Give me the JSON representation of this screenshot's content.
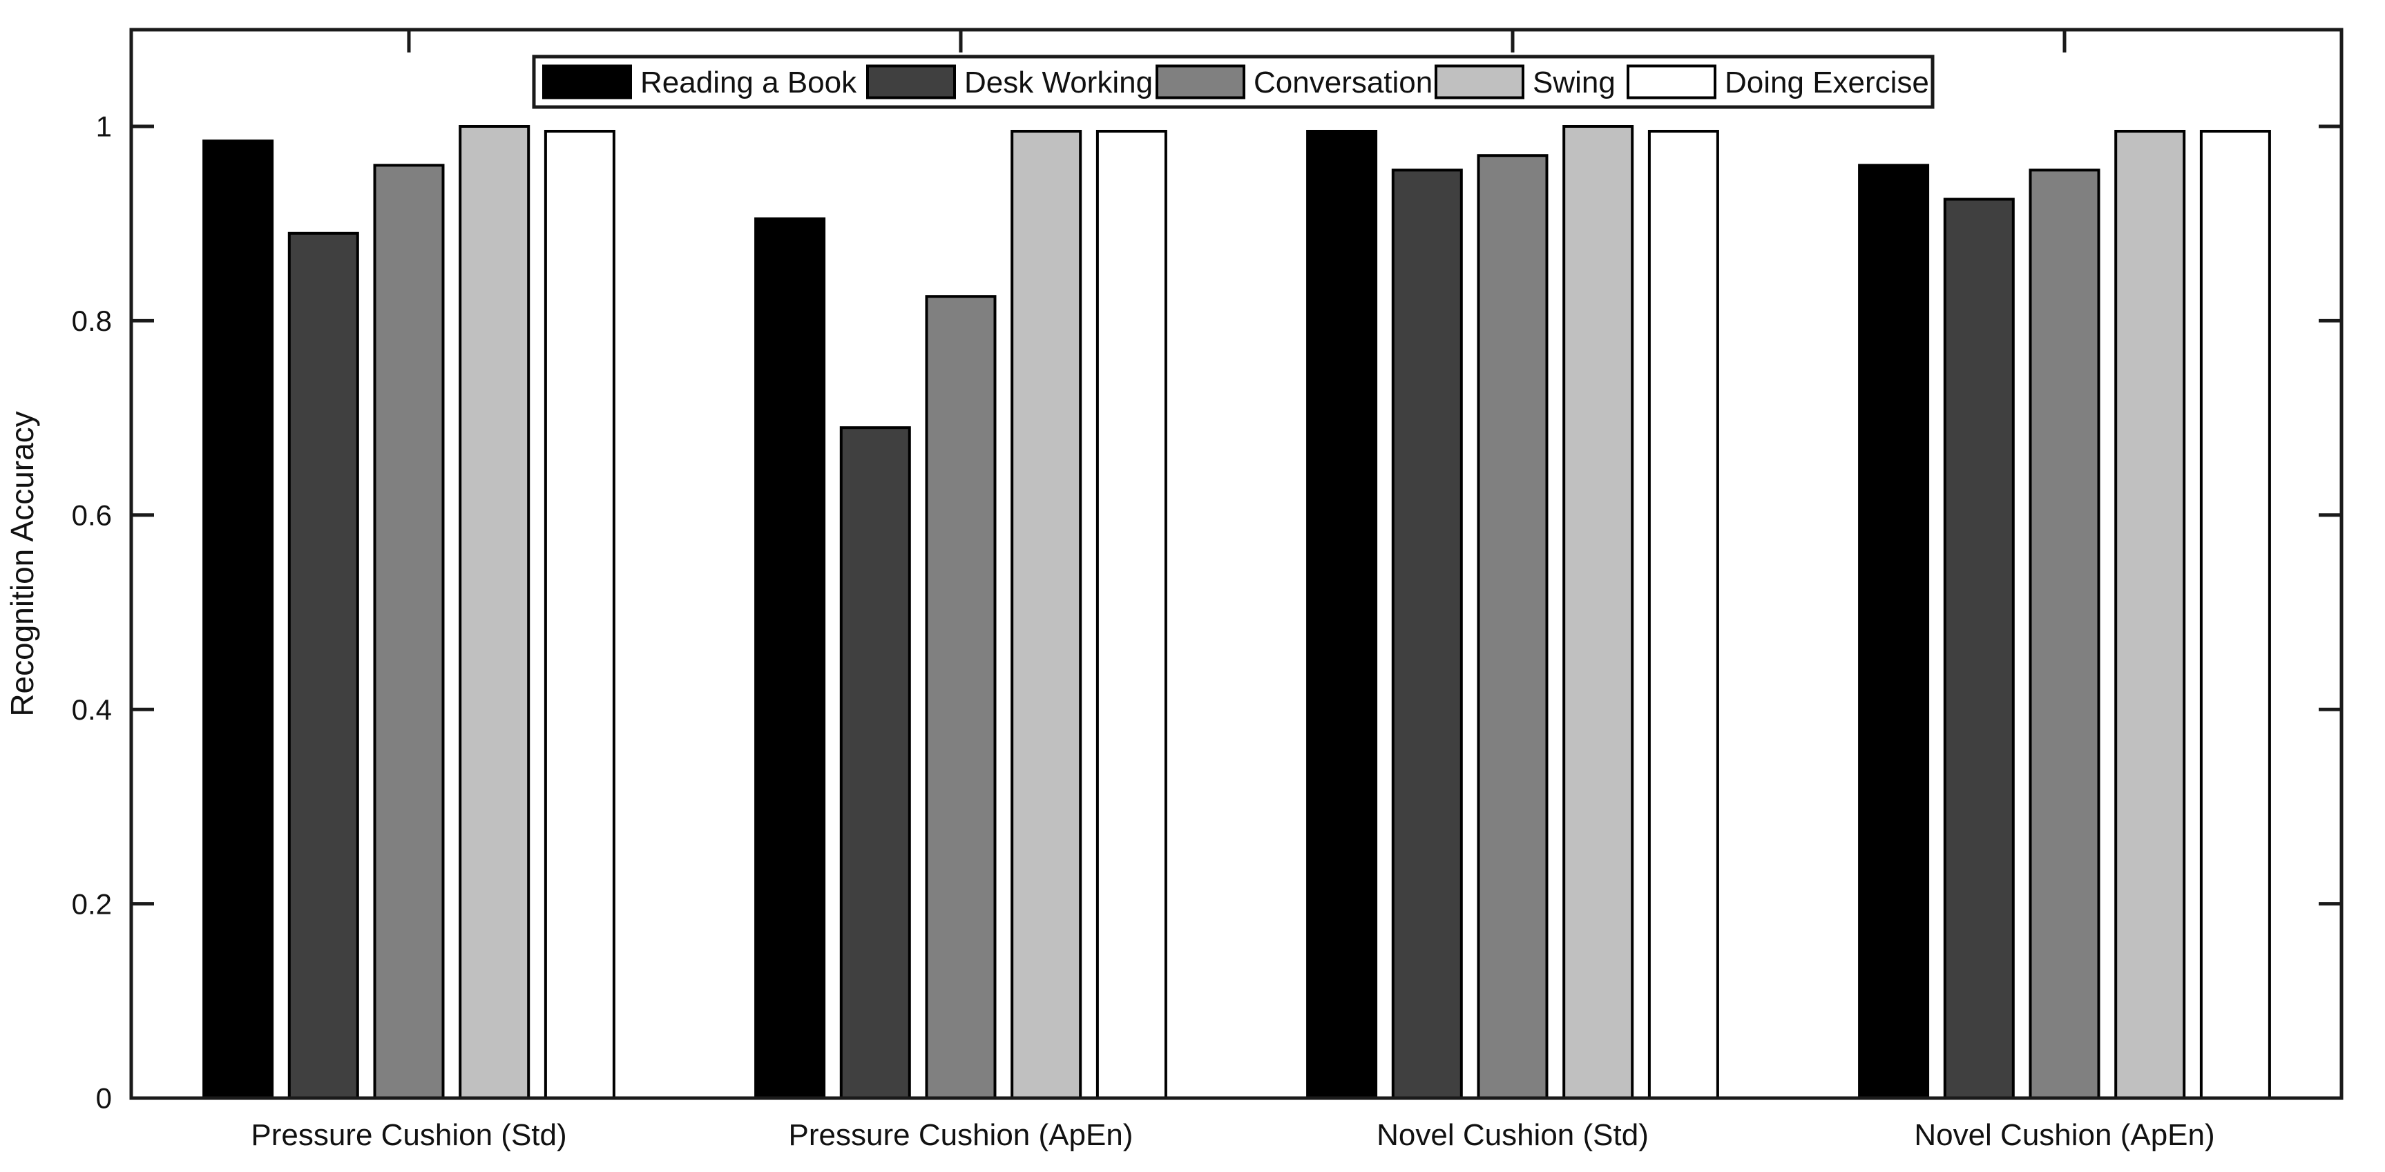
{
  "figure": {
    "background": "#ffffff",
    "axis_color": "#1a1a1a",
    "text_color": "#111111"
  },
  "chart_data": {
    "type": "bar",
    "title": "",
    "xlabel": "",
    "ylabel": "Recognition Accuracy",
    "grid": false,
    "legend_position": "north-horizontal",
    "ylim": [
      0,
      1.1
    ],
    "yticks": [
      {
        "value": 0,
        "label": "0"
      },
      {
        "value": 0.2,
        "label": "0.2"
      },
      {
        "value": 0.4,
        "label": "0.4"
      },
      {
        "value": 0.6,
        "label": "0.6"
      },
      {
        "value": 0.8,
        "label": "0.8"
      },
      {
        "value": 1,
        "label": "1"
      }
    ],
    "categories": [
      "Pressure Cushion (Std)",
      "Pressure Cushion (ApEn)",
      "Novel Cushion (Std)",
      "Novel Cushion (ApEn)"
    ],
    "series": [
      {
        "name": "Reading a Book",
        "color": "#000000",
        "values": [
          0.985,
          0.905,
          0.995,
          0.96
        ]
      },
      {
        "name": "Desk Working",
        "color": "#404040",
        "values": [
          0.89,
          0.69,
          0.955,
          0.925
        ]
      },
      {
        "name": "Conversation",
        "color": "#808080",
        "values": [
          0.96,
          0.825,
          0.97,
          0.955
        ]
      },
      {
        "name": "Swing",
        "color": "#c0c0c0",
        "values": [
          1.0,
          0.995,
          1.0,
          0.995
        ]
      },
      {
        "name": "Doing Exercise",
        "color": "#ffffff",
        "values": [
          0.995,
          0.995,
          0.995,
          0.995
        ]
      }
    ],
    "bar_edge_color": "#000000"
  }
}
